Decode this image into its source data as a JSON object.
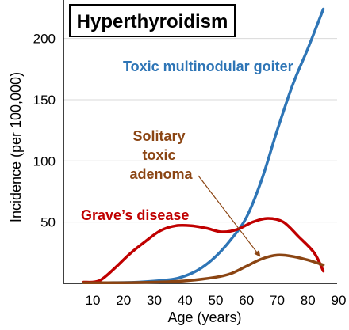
{
  "chart_data": {
    "type": "line",
    "title": "Hyperthyroidism",
    "xlabel": "Age (years)",
    "ylabel": "Incidence (per 100,000)",
    "xlim": [
      5,
      90
    ],
    "ylim": [
      0,
      230
    ],
    "x_ticks": [
      10,
      20,
      30,
      40,
      50,
      60,
      70,
      80,
      90
    ],
    "y_ticks": [
      50,
      100,
      150,
      200
    ],
    "grid": true,
    "colors": {
      "toxic_multinodular_goiter": "#2e75b6",
      "graves_disease": "#c00000",
      "solitary_toxic_adenoma": "#8b4513"
    },
    "series": [
      {
        "name": "Toxic multinodular goiter",
        "color": "#2e75b6",
        "points": [
          [
            7,
            0.5
          ],
          [
            15,
            0.5
          ],
          [
            25,
            1
          ],
          [
            35,
            3
          ],
          [
            40,
            6
          ],
          [
            45,
            12
          ],
          [
            50,
            22
          ],
          [
            55,
            36
          ],
          [
            60,
            54
          ],
          [
            65,
            85
          ],
          [
            70,
            125
          ],
          [
            75,
            162
          ],
          [
            80,
            192
          ],
          [
            85,
            224
          ]
        ]
      },
      {
        "name": "Grave’s disease",
        "color": "#c00000",
        "points": [
          [
            7,
            1
          ],
          [
            12,
            2
          ],
          [
            17,
            12
          ],
          [
            22,
            24
          ],
          [
            27,
            34
          ],
          [
            32,
            43
          ],
          [
            37,
            47
          ],
          [
            42,
            47
          ],
          [
            47,
            45
          ],
          [
            52,
            42
          ],
          [
            57,
            44
          ],
          [
            62,
            50
          ],
          [
            67,
            53
          ],
          [
            72,
            50
          ],
          [
            77,
            38
          ],
          [
            82,
            25
          ],
          [
            85,
            10
          ]
        ]
      },
      {
        "name": "Solitary toxic adenoma",
        "color": "#8b4513",
        "label_lines": [
          "Solitary",
          "toxic",
          "adenoma"
        ],
        "points": [
          [
            7,
            0.5
          ],
          [
            20,
            0.5
          ],
          [
            30,
            1
          ],
          [
            40,
            2
          ],
          [
            50,
            5
          ],
          [
            55,
            8
          ],
          [
            60,
            14
          ],
          [
            65,
            20
          ],
          [
            70,
            23
          ],
          [
            75,
            22
          ],
          [
            80,
            19
          ],
          [
            85,
            15
          ]
        ]
      }
    ],
    "annotations": [
      {
        "type": "arrow",
        "from_label": "Solitary toxic adenoma",
        "to_xy": [
          65,
          20
        ]
      }
    ]
  }
}
